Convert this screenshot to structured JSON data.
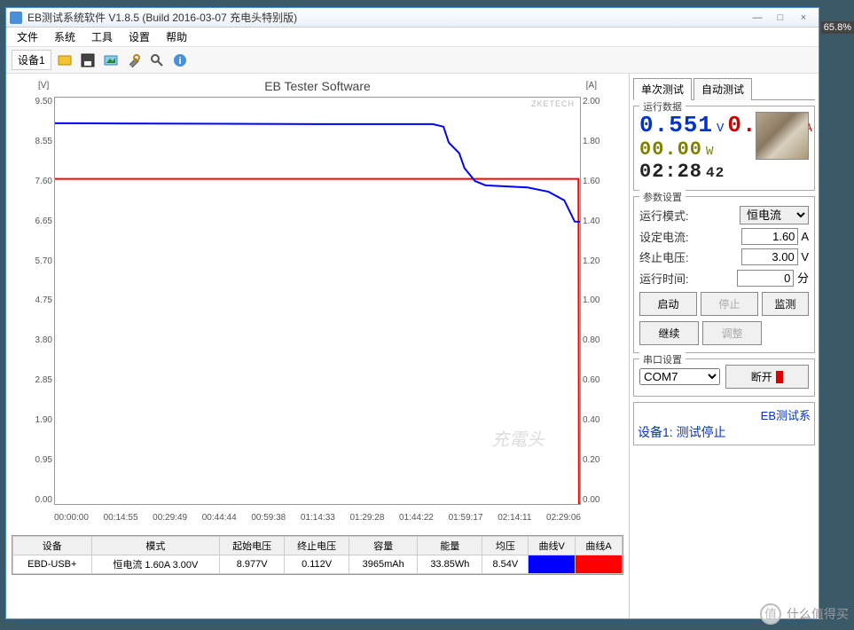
{
  "overlay": {
    "percent": "65.8%"
  },
  "window": {
    "title": "EB测试系统软件 V1.8.5 (Build 2016-03-07 充电头特别版)",
    "minimize": "—",
    "maximize": "□",
    "close": "×"
  },
  "menu": {
    "file": "文件",
    "system": "系统",
    "tool": "工具",
    "settings": "设置",
    "help": "帮助"
  },
  "toolbar": {
    "device_tab": "设备1"
  },
  "chart": {
    "title": "EB Tester Software",
    "yL_unit": "[V]",
    "yR_unit": "[A]",
    "watermark1": "ZKETECH",
    "watermark2": "充電头",
    "x_ticks": [
      "00:00:00",
      "00:14:55",
      "00:29:49",
      "00:44:44",
      "00:59:38",
      "01:14:33",
      "01:29:28",
      "01:44:22",
      "01:59:17",
      "02:14:11",
      "02:29:06"
    ],
    "yL_ticks": [
      "9.50",
      "8.55",
      "7.60",
      "6.65",
      "5.70",
      "4.75",
      "3.80",
      "2.85",
      "1.90",
      "0.95",
      "0.00"
    ],
    "yR_ticks": [
      "2.00",
      "1.80",
      "1.60",
      "1.40",
      "1.20",
      "1.00",
      "0.80",
      "0.60",
      "0.40",
      "0.20",
      "0.00"
    ],
    "yL_max": 9.5,
    "yR_max": 2.0,
    "voltage_series": [
      [
        0,
        8.9
      ],
      [
        0.02,
        8.9
      ],
      [
        0.5,
        8.88
      ],
      [
        0.72,
        8.88
      ],
      [
        0.74,
        8.82
      ],
      [
        0.75,
        8.45
      ],
      [
        0.77,
        8.2
      ],
      [
        0.78,
        7.85
      ],
      [
        0.8,
        7.55
      ],
      [
        0.82,
        7.45
      ],
      [
        0.9,
        7.4
      ],
      [
        0.94,
        7.3
      ],
      [
        0.97,
        7.1
      ],
      [
        0.99,
        6.6
      ],
      [
        1.0,
        6.6
      ]
    ],
    "voltage_color": "#0000ff",
    "voltage_width": 2,
    "current_series": [
      [
        0,
        1.6
      ],
      [
        0.997,
        1.6
      ],
      [
        0.998,
        0.0
      ],
      [
        1.0,
        0.0
      ]
    ],
    "current_color": "#ff0000",
    "current_width": 2,
    "background": "#ffffff",
    "grid_color": "#dddddd"
  },
  "table": {
    "headers": [
      "设备",
      "模式",
      "起始电压",
      "终止电压",
      "容量",
      "能量",
      "均压",
      "曲线V",
      "曲线A"
    ],
    "row": {
      "device": "EBD-USB+",
      "mode": "恒电流  1.60A  3.00V",
      "start_v": "8.977V",
      "end_v": "0.112V",
      "capacity": "3965mAh",
      "energy": "33.85Wh",
      "avg_v": "8.54V"
    }
  },
  "panel": {
    "tab_single": "单次测试",
    "tab_auto": "自动测试",
    "run_data_title": "运行数据",
    "voltage": "0.551",
    "voltage_unit": "V",
    "current": "0.000",
    "current_unit": "A",
    "power": "00.00",
    "power_unit": "W",
    "time": "02:28",
    "time_sec": "42",
    "param_title": "参数设置",
    "mode_label": "运行模式:",
    "mode_value": "恒电流",
    "set_current_label": "设定电流:",
    "set_current_value": "1.60",
    "set_current_unit": "A",
    "end_voltage_label": "终止电压:",
    "end_voltage_value": "3.00",
    "end_voltage_unit": "V",
    "run_time_label": "运行时间:",
    "run_time_value": "0",
    "run_time_unit": "分",
    "btn_start": "启动",
    "btn_stop": "停止",
    "btn_monitor": "监测",
    "btn_continue": "继续",
    "btn_adjust": "调整",
    "serial_title": "串口设置",
    "com_port": "COM7",
    "disconnect": "断开",
    "status_title_right": "EB测试系",
    "status_line": "设备1: 测试停止"
  },
  "footer": {
    "logo_char": "值",
    "text": "什么值得买"
  }
}
